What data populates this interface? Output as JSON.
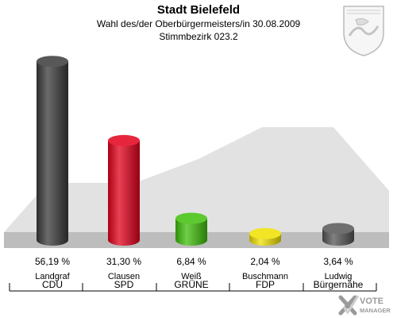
{
  "header": {
    "title": "Stadt Bielefeld",
    "subtitle": "Wahl des/der Oberbürgermeisters/in 30.08.2009",
    "district": "Stimmbezirk 023.2"
  },
  "chart_data": {
    "type": "bar",
    "categories": [
      "CDU",
      "SPD",
      "GRÜNE",
      "FDP",
      "Bürgernähe"
    ],
    "candidates": [
      "Landgraf",
      "Clausen",
      "Weiß",
      "Buschmann",
      "Ludwig"
    ],
    "values": [
      56.19,
      31.3,
      6.84,
      2.04,
      3.64
    ],
    "value_labels": [
      "56,19 %",
      "31,30 %",
      "6,84 %",
      "2,04 %",
      "3,64 %"
    ],
    "colors": [
      "#3a3a3a",
      "#e3001b",
      "#3fbf0a",
      "#f0e000",
      "#555555"
    ],
    "ylim": [
      0,
      60
    ],
    "grid": false
  },
  "logo": {
    "line1": "VOTE",
    "line2": "MANAGER",
    "icon": "checkmark-x-icon"
  },
  "crest": {
    "icon": "coat-of-arms-icon"
  }
}
